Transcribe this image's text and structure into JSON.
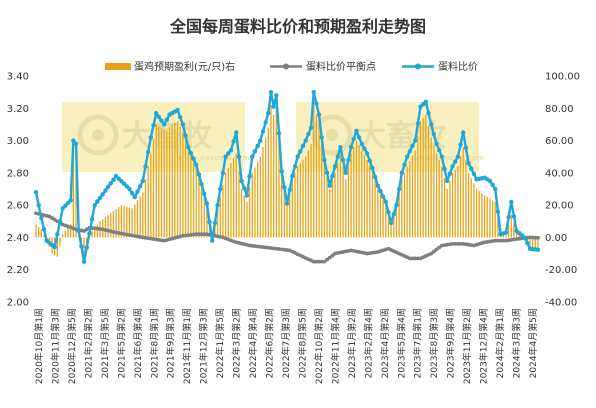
{
  "chart_data": {
    "type": "bar+line",
    "title": "全国每周蛋料比价和预期盈利走势图",
    "watermark": "大畜牧",
    "watermark_url": "www.daxumu.com",
    "legend": [
      {
        "name": "蛋鸡预期盈利(元/只)右",
        "kind": "bar",
        "color": "#E8A317"
      },
      {
        "name": "蛋料比价平衡点",
        "kind": "line",
        "color": "#7F7F7F"
      },
      {
        "name": "蛋料比价",
        "kind": "line",
        "color": "#1FA7D9"
      }
    ],
    "left_axis": {
      "min": 2.0,
      "max": 3.4,
      "step": 0.2,
      "tick_labels": [
        "2.00",
        "2.20",
        "2.40",
        "2.60",
        "2.80",
        "3.00",
        "3.20",
        "3.40"
      ]
    },
    "right_axis": {
      "min": -40,
      "max": 100,
      "step": 20,
      "tick_labels": [
        "-40.00",
        "-20.00",
        "0.00",
        "20.00",
        "40.00",
        "60.00",
        "80.00",
        "100.00"
      ]
    },
    "x_tick_labels": [
      "2020年10月第1周",
      "2020年11月第3周",
      "2020年12月第5周",
      "2021年2月第2周",
      "2021年3月第5周",
      "2021年5月第2周",
      "2021年6月第4周",
      "2021年8月第1周",
      "2021年9月第3周",
      "2021年11月第1周",
      "2021年12月第3周",
      "2022年1月第5周",
      "2022年3月第2周",
      "2022年4月第4周",
      "2022年6月第2周",
      "2022年7月第3周",
      "2022年8月第5周",
      "2022年10月第2周",
      "2022年11月第4周",
      "2023年1月第2周",
      "2023年2月第4周",
      "2023年4月第2周",
      "2023年5月第4周",
      "2023年7月第1周",
      "2023年8月第3周",
      "2023年9月第4周",
      "2023年11月第2周",
      "2023年12月第4周",
      "2024年2月第1周",
      "2024年3月第3周",
      "2024年4月第5周"
    ],
    "point_count": 189,
    "ratio_anchors": [
      [
        0,
        2.68
      ],
      [
        2,
        2.52
      ],
      [
        4,
        2.38
      ],
      [
        7,
        2.34
      ],
      [
        10,
        2.58
      ],
      [
        13,
        2.63
      ],
      [
        14,
        3.0
      ],
      [
        15,
        2.98
      ],
      [
        16,
        2.44
      ],
      [
        18,
        2.25
      ],
      [
        22,
        2.6
      ],
      [
        26,
        2.69
      ],
      [
        30,
        2.78
      ],
      [
        35,
        2.7
      ],
      [
        37,
        2.65
      ],
      [
        40,
        2.75
      ],
      [
        43,
        3.02
      ],
      [
        45,
        3.17
      ],
      [
        48,
        3.1
      ],
      [
        50,
        3.16
      ],
      [
        53,
        3.19
      ],
      [
        55,
        3.1
      ],
      [
        57,
        2.96
      ],
      [
        60,
        2.85
      ],
      [
        64,
        2.61
      ],
      [
        66,
        2.38
      ],
      [
        68,
        2.6
      ],
      [
        71,
        2.9
      ],
      [
        73,
        2.94
      ],
      [
        75,
        3.05
      ],
      [
        77,
        2.75
      ],
      [
        79,
        2.66
      ],
      [
        81,
        2.9
      ],
      [
        84,
        3.0
      ],
      [
        87,
        3.17
      ],
      [
        88,
        3.3
      ],
      [
        89,
        3.21
      ],
      [
        90,
        3.28
      ],
      [
        92,
        2.81
      ],
      [
        94,
        2.61
      ],
      [
        96,
        2.78
      ],
      [
        98,
        2.9
      ],
      [
        101,
        3.0
      ],
      [
        103,
        3.08
      ],
      [
        104,
        3.3
      ],
      [
        106,
        3.16
      ],
      [
        108,
        2.88
      ],
      [
        110,
        2.72
      ],
      [
        112,
        2.84
      ],
      [
        114,
        2.96
      ],
      [
        116,
        2.8
      ],
      [
        118,
        2.96
      ],
      [
        120,
        3.06
      ],
      [
        122,
        2.98
      ],
      [
        124,
        2.92
      ],
      [
        126,
        2.83
      ],
      [
        128,
        2.72
      ],
      [
        131,
        2.62
      ],
      [
        133,
        2.49
      ],
      [
        135,
        2.6
      ],
      [
        137,
        2.8
      ],
      [
        139,
        2.9
      ],
      [
        142,
        3.0
      ],
      [
        144,
        3.21
      ],
      [
        146,
        3.24
      ],
      [
        148,
        3.1
      ],
      [
        150,
        2.98
      ],
      [
        152,
        2.9
      ],
      [
        154,
        2.75
      ],
      [
        156,
        2.84
      ],
      [
        158,
        2.9
      ],
      [
        160,
        3.05
      ],
      [
        162,
        2.86
      ],
      [
        165,
        2.76
      ],
      [
        168,
        2.77
      ],
      [
        170,
        2.75
      ],
      [
        172,
        2.7
      ],
      [
        174,
        2.42
      ],
      [
        176,
        2.43
      ],
      [
        178,
        2.62
      ],
      [
        180,
        2.44
      ],
      [
        183,
        2.4
      ],
      [
        185,
        2.33
      ]
    ],
    "balance_anchors": [
      [
        0,
        2.55
      ],
      [
        5,
        2.53
      ],
      [
        10,
        2.48
      ],
      [
        15,
        2.45
      ],
      [
        18,
        2.44
      ],
      [
        20,
        2.46
      ],
      [
        25,
        2.45
      ],
      [
        30,
        2.43
      ],
      [
        40,
        2.4
      ],
      [
        48,
        2.38
      ],
      [
        55,
        2.41
      ],
      [
        60,
        2.42
      ],
      [
        64,
        2.42
      ],
      [
        70,
        2.4
      ],
      [
        75,
        2.37
      ],
      [
        80,
        2.35
      ],
      [
        85,
        2.34
      ],
      [
        90,
        2.33
      ],
      [
        95,
        2.32
      ],
      [
        100,
        2.28
      ],
      [
        104,
        2.25
      ],
      [
        108,
        2.25
      ],
      [
        112,
        2.3
      ],
      [
        118,
        2.32
      ],
      [
        124,
        2.3
      ],
      [
        128,
        2.31
      ],
      [
        132,
        2.33
      ],
      [
        136,
        2.3
      ],
      [
        140,
        2.27
      ],
      [
        144,
        2.27
      ],
      [
        148,
        2.3
      ],
      [
        152,
        2.35
      ],
      [
        156,
        2.36
      ],
      [
        160,
        2.36
      ],
      [
        164,
        2.35
      ],
      [
        168,
        2.37
      ],
      [
        172,
        2.38
      ],
      [
        176,
        2.38
      ],
      [
        180,
        2.39
      ],
      [
        185,
        2.4
      ]
    ],
    "profit_anchors": [
      [
        0,
        8
      ],
      [
        2,
        5
      ],
      [
        4,
        -2
      ],
      [
        6,
        -10
      ],
      [
        8,
        -12
      ],
      [
        10,
        2
      ],
      [
        12,
        6
      ],
      [
        13,
        8
      ],
      [
        14,
        48
      ],
      [
        15,
        46
      ],
      [
        16,
        3
      ],
      [
        18,
        -10
      ],
      [
        20,
        2
      ],
      [
        24,
        10
      ],
      [
        28,
        15
      ],
      [
        32,
        20
      ],
      [
        36,
        18
      ],
      [
        40,
        28
      ],
      [
        43,
        52
      ],
      [
        45,
        70
      ],
      [
        47,
        68
      ],
      [
        49,
        66
      ],
      [
        51,
        70
      ],
      [
        53,
        72
      ],
      [
        55,
        65
      ],
      [
        57,
        55
      ],
      [
        60,
        44
      ],
      [
        64,
        20
      ],
      [
        66,
        -2
      ],
      [
        68,
        18
      ],
      [
        71,
        40
      ],
      [
        73,
        46
      ],
      [
        75,
        52
      ],
      [
        77,
        30
      ],
      [
        79,
        22
      ],
      [
        81,
        40
      ],
      [
        84,
        50
      ],
      [
        87,
        68
      ],
      [
        88,
        82
      ],
      [
        89,
        76
      ],
      [
        90,
        80
      ],
      [
        92,
        42
      ],
      [
        94,
        25
      ],
      [
        96,
        36
      ],
      [
        98,
        44
      ],
      [
        101,
        50
      ],
      [
        103,
        58
      ],
      [
        104,
        82
      ],
      [
        106,
        70
      ],
      [
        108,
        46
      ],
      [
        110,
        30
      ],
      [
        112,
        40
      ],
      [
        114,
        52
      ],
      [
        116,
        36
      ],
      [
        118,
        52
      ],
      [
        120,
        60
      ],
      [
        122,
        54
      ],
      [
        124,
        48
      ],
      [
        126,
        42
      ],
      [
        128,
        30
      ],
      [
        131,
        20
      ],
      [
        133,
        8
      ],
      [
        135,
        18
      ],
      [
        137,
        36
      ],
      [
        139,
        44
      ],
      [
        142,
        54
      ],
      [
        144,
        72
      ],
      [
        146,
        76
      ],
      [
        148,
        62
      ],
      [
        150,
        52
      ],
      [
        152,
        44
      ],
      [
        154,
        30
      ],
      [
        156,
        40
      ],
      [
        158,
        44
      ],
      [
        160,
        56
      ],
      [
        162,
        40
      ],
      [
        165,
        30
      ],
      [
        168,
        26
      ],
      [
        170,
        24
      ],
      [
        172,
        22
      ],
      [
        174,
        2
      ],
      [
        176,
        2
      ],
      [
        178,
        14
      ],
      [
        180,
        4
      ],
      [
        183,
        -2
      ],
      [
        185,
        -6
      ]
    ]
  }
}
